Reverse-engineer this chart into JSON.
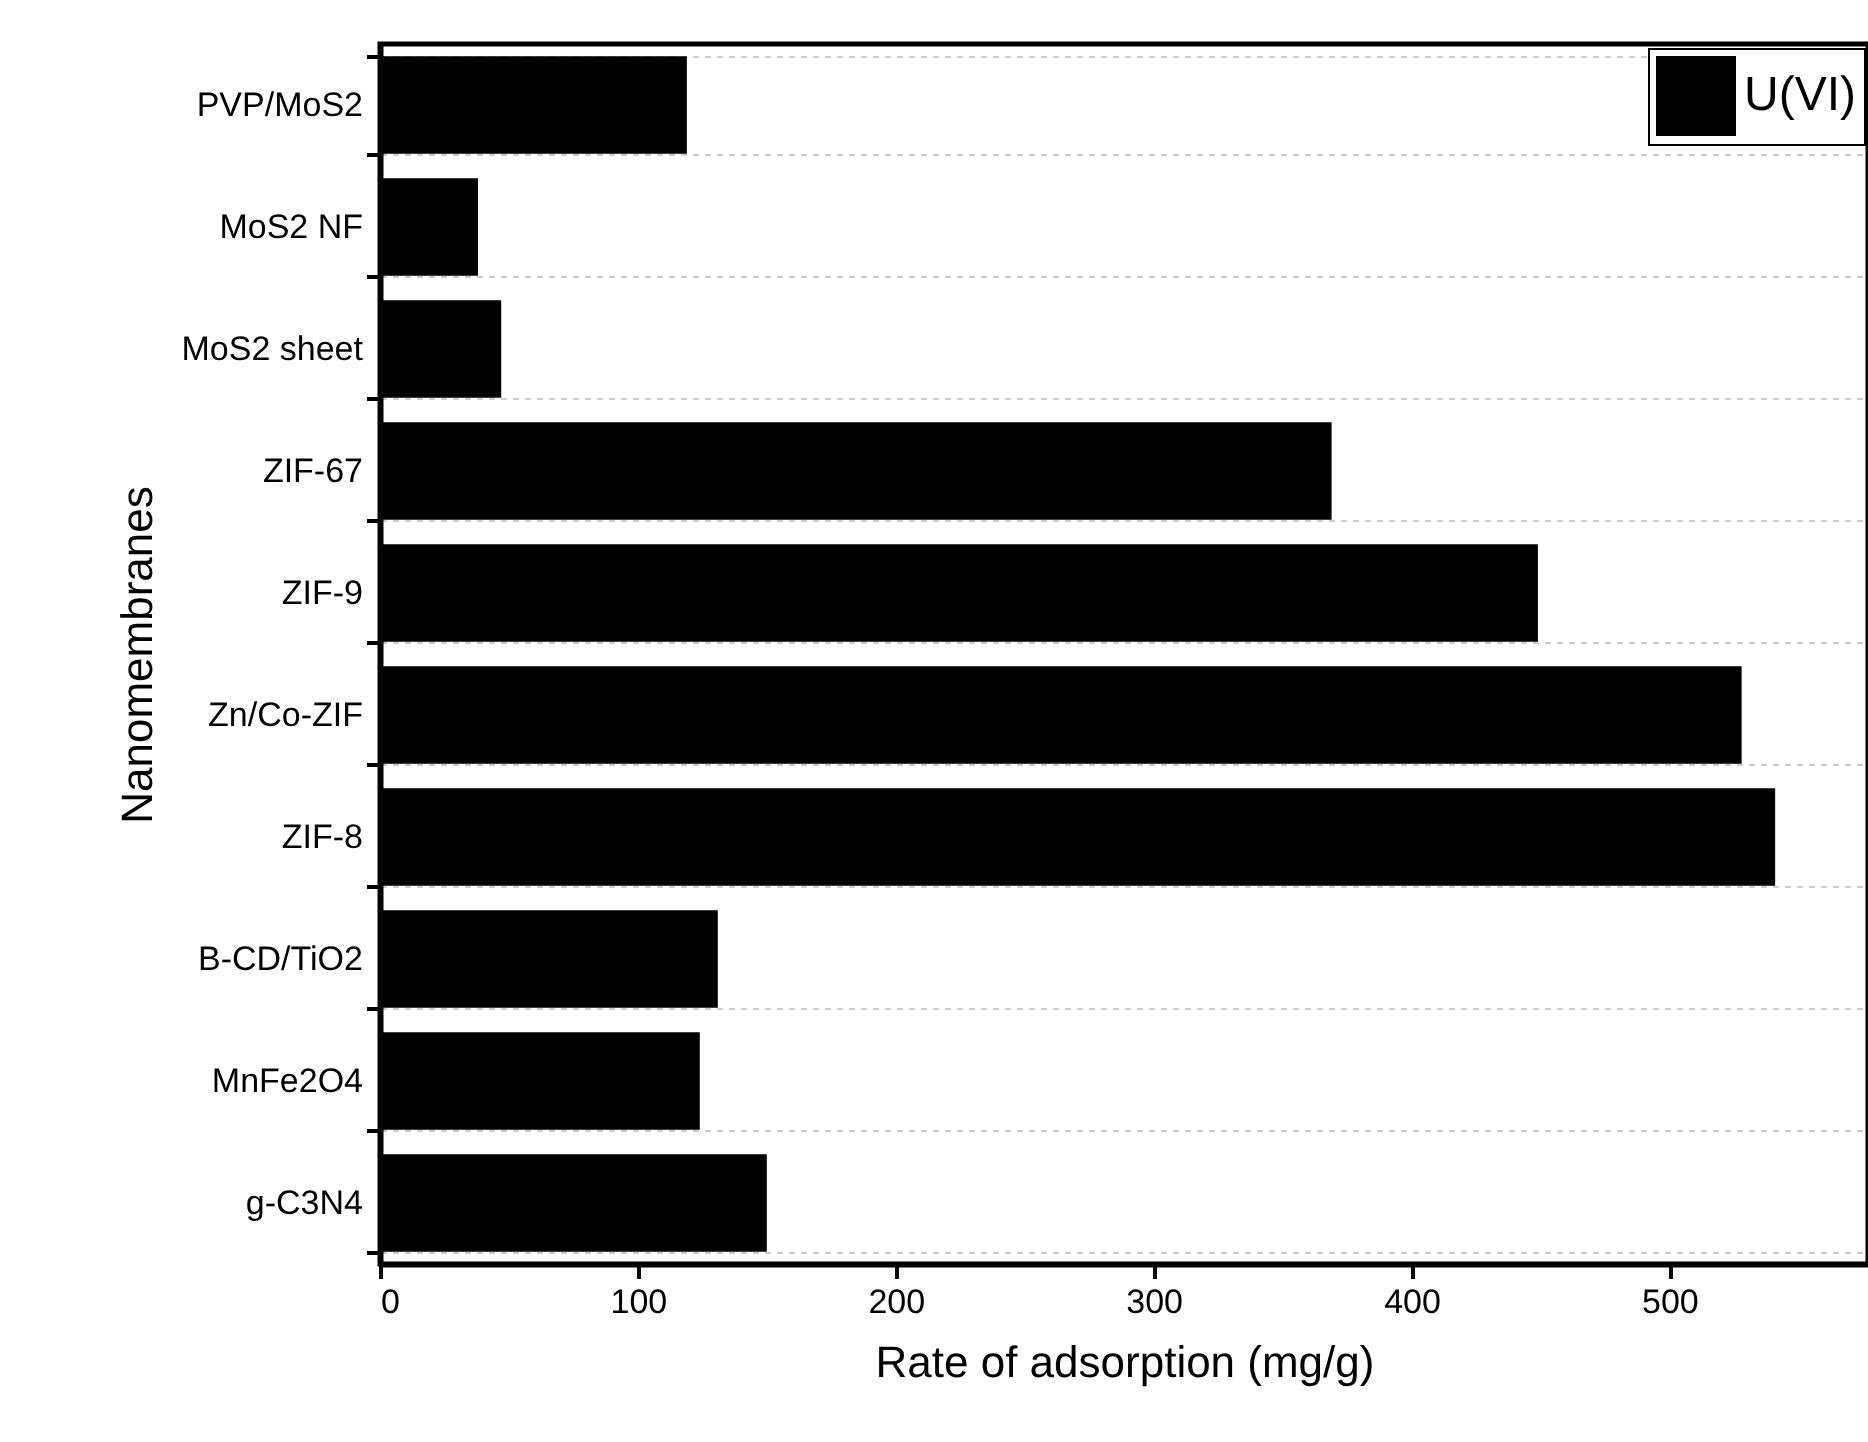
{
  "chart_data": {
    "type": "bar",
    "orientation": "horizontal",
    "xlabel": "Rate of adsorption (mg/g)",
    "ylabel": "Nanomembranes",
    "categories": [
      "PVP/MoS2",
      "MoS2 NF",
      "MoS2 sheet",
      "ZIF-67",
      "ZIF-9",
      "Zn/Co-ZIF",
      "ZIF-8",
      "B-CD/TiO2",
      "MnFe2O4",
      "g-C3N4"
    ],
    "series": [
      {
        "name": "U(VI)",
        "color": "#000000",
        "values": [
          119,
          38,
          47,
          369,
          449,
          528,
          541,
          131,
          124,
          150
        ]
      }
    ],
    "xlim": [
      0,
      577
    ],
    "xticks": [
      0,
      100,
      200,
      300,
      400,
      500
    ],
    "grid": "y",
    "legend": "top right"
  }
}
